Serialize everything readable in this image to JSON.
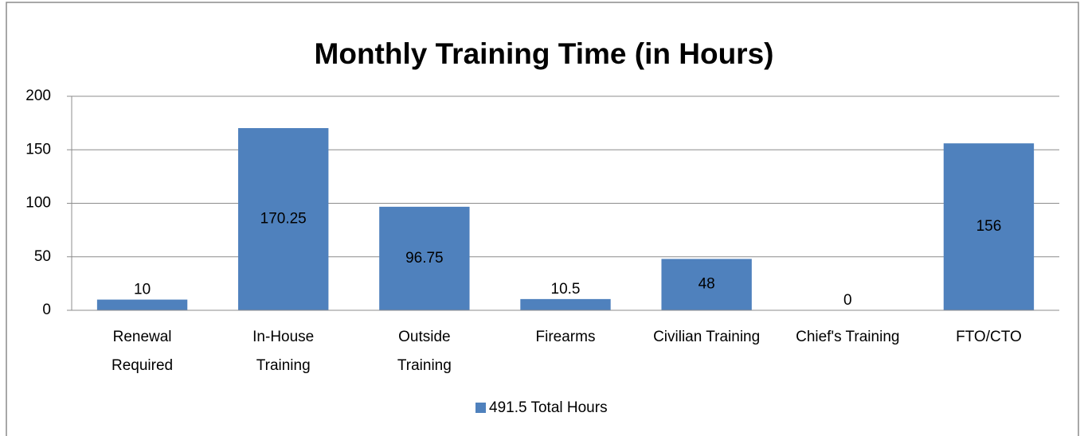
{
  "chart_data": {
    "type": "bar",
    "title": "Monthly Training Time (in Hours)",
    "categories": [
      "Renewal\nRequired",
      "In-House\nTraining",
      "Outside\nTraining",
      "Firearms",
      "Civilian Training",
      "Chief's Training",
      "FTO/CTO"
    ],
    "series": [
      {
        "name": "491.5 Total Hours",
        "color": "#4f81bd",
        "values": [
          10,
          170.25,
          96.75,
          10.5,
          48,
          0,
          156
        ]
      }
    ],
    "ylim": [
      0,
      200
    ],
    "yticks": [
      0,
      50,
      100,
      150,
      200
    ],
    "grid": true,
    "legend": "bottom",
    "data_labels": true
  }
}
